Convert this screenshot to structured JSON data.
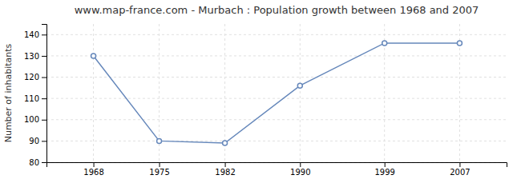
{
  "chart_data": {
    "type": "line",
    "title": "www.map-france.com - Murbach : Population growth between 1968 and 2007",
    "ylabel": "Number of inhabitants",
    "x": [
      1968,
      1975,
      1982,
      1990,
      1999,
      2007
    ],
    "values": [
      130,
      90,
      89,
      116,
      136,
      136
    ],
    "xlim": [
      1963,
      2012
    ],
    "xticks": [
      1968,
      1975,
      1982,
      1990,
      1999,
      2007
    ],
    "ylim": [
      80,
      145
    ],
    "yticks": [
      80,
      90,
      100,
      110,
      120,
      130,
      140
    ],
    "color": "#6688bb",
    "marker": "circle",
    "grid": true
  }
}
